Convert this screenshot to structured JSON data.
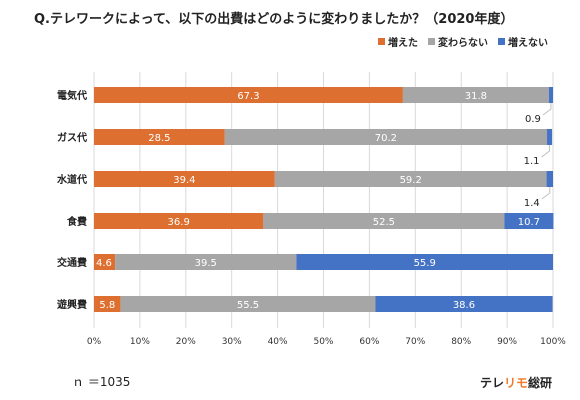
{
  "title": "Q.テレワークによって、以下の出費はどのように変わりましたか？（2020年度）",
  "footnote": "ｎ ＝1035",
  "brand": {
    "part1": "テレ",
    "part2": "リモ",
    "part3": "総研"
  },
  "colors": {
    "increased": "#dd7030",
    "unchanged": "#a6a6a6",
    "decreased": "#4472c4",
    "brand_accent": "#f07a2a"
  },
  "chart_data": {
    "type": "bar",
    "orientation": "horizontal",
    "stacked": true,
    "title": "Q.テレワークによって、以下の出費はどのように変わりましたか？（2020年度）",
    "categories": [
      "電気代",
      "ガス代",
      "水道代",
      "食費",
      "交通費",
      "遊興費"
    ],
    "series": [
      {
        "name": "増えた",
        "color": "#dd7030",
        "values": [
          67.3,
          28.5,
          39.4,
          36.9,
          4.6,
          5.8
        ]
      },
      {
        "name": "変わらない",
        "color": "#a6a6a6",
        "values": [
          31.8,
          70.2,
          59.2,
          52.5,
          39.5,
          55.5
        ]
      },
      {
        "name": "増えない",
        "color": "#4472c4",
        "values": [
          0.9,
          1.1,
          1.4,
          10.7,
          55.9,
          38.6
        ]
      }
    ],
    "x_ticks": [
      "0%",
      "10%",
      "20%",
      "30%",
      "40%",
      "50%",
      "60%",
      "70%",
      "80%",
      "90%",
      "100%"
    ],
    "xlim": [
      0,
      100
    ],
    "grid": true,
    "legend": "top-right",
    "callout_categories": [
      0,
      1,
      2
    ]
  }
}
